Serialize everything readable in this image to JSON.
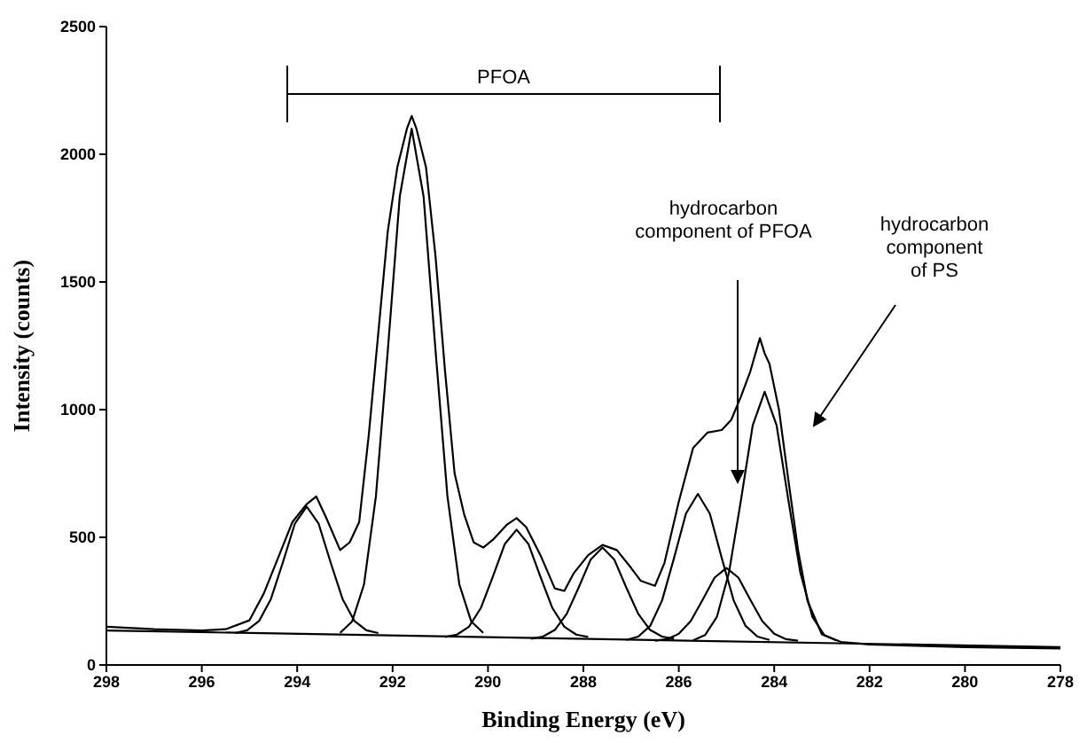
{
  "chart_data": {
    "type": "line",
    "xlabel": "Binding Energy (eV)",
    "ylabel": "Intensity (counts)",
    "xlim": [
      298,
      278
    ],
    "xticks": [
      298,
      296,
      294,
      292,
      290,
      288,
      286,
      284,
      282,
      280,
      278
    ],
    "ylim": [
      0,
      2500
    ],
    "yticks": [
      0,
      500,
      1000,
      1500,
      2000,
      2500
    ],
    "marker": "none",
    "line_style": "solid",
    "annotations": [
      "PFOA",
      "hydrocarbon\ncomponent of PFOA",
      "hydrocarbon\ncomponent\nof PS"
    ],
    "series": [
      {
        "color": "#000000",
        "x": [
          298,
          297,
          296,
          295.5,
          295,
          294.7,
          294.4,
          294.1,
          293.8,
          293.6,
          293.4,
          293.1,
          292.9,
          292.7,
          292.5,
          292.3,
          292.1,
          291.9,
          291.7,
          291.6,
          291.5,
          291.3,
          291.1,
          290.9,
          290.7,
          290.5,
          290.3,
          290.1,
          289.9,
          289.6,
          289.4,
          289.2,
          288.9,
          288.6,
          288.4,
          288.2,
          287.9,
          287.6,
          287.3,
          287,
          286.8,
          286.5,
          286.3,
          286,
          285.7,
          285.4,
          285.1,
          284.9,
          284.7,
          284.5,
          284.3,
          284.2,
          284.1,
          283.9,
          283.7,
          283.5,
          283.3,
          283,
          282.6,
          282,
          280,
          278
        ],
        "values": [
          150,
          140,
          135,
          140,
          175,
          280,
          420,
          560,
          630,
          660,
          580,
          450,
          480,
          560,
          900,
          1300,
          1700,
          1950,
          2100,
          2150,
          2100,
          1950,
          1600,
          1150,
          750,
          590,
          480,
          460,
          490,
          550,
          575,
          540,
          430,
          300,
          290,
          360,
          430,
          470,
          450,
          380,
          330,
          310,
          400,
          640,
          850,
          910,
          920,
          960,
          1050,
          1150,
          1280,
          1220,
          1180,
          1000,
          720,
          450,
          250,
          120,
          90,
          80,
          70,
          65
        ]
      },
      {
        "color": "#000000",
        "x": [
          298,
          278
        ],
        "values": [
          135,
          70
        ]
      },
      {
        "color": "#000000",
        "x": [
          295.3,
          295.05,
          294.8,
          294.55,
          294.3,
          294.05,
          293.8,
          293.55,
          293.3,
          293.05,
          292.8,
          292.55,
          292.3
        ],
        "values": [
          125,
          136,
          172,
          259,
          402,
          553,
          620,
          553,
          402,
          259,
          172,
          136,
          125
        ]
      },
      {
        "color": "#000000",
        "x": [
          293.1,
          292.85,
          292.6,
          292.35,
          292.1,
          291.85,
          291.6,
          291.35,
          291.1,
          290.85,
          290.6,
          290.35,
          290.1
        ],
        "values": [
          126,
          170,
          315,
          660,
          1232,
          1834,
          2100,
          1834,
          1232,
          660,
          315,
          170,
          126
        ]
      },
      {
        "color": "#000000",
        "x": [
          290.9,
          290.65,
          290.4,
          290.15,
          289.9,
          289.65,
          289.4,
          289.15,
          288.9,
          288.65,
          288.4,
          288.15,
          287.9
        ],
        "values": [
          110,
          119,
          150,
          223,
          345,
          473,
          530,
          473,
          345,
          223,
          150,
          119,
          110
        ]
      },
      {
        "color": "#000000",
        "x": [
          289.1,
          288.85,
          288.6,
          288.35,
          288.1,
          287.85,
          287.6,
          287.35,
          287.1,
          286.85,
          286.6,
          286.35,
          286.1
        ],
        "values": [
          103,
          111,
          137,
          200,
          303,
          412,
          460,
          412,
          303,
          200,
          137,
          111,
          103
        ]
      },
      {
        "color": "#000000",
        "x": [
          287.1,
          286.85,
          286.6,
          286.35,
          286.1,
          285.85,
          285.6,
          285.35,
          285.1,
          284.85,
          284.6,
          284.35,
          284.1
        ],
        "values": [
          98,
          111,
          153,
          253,
          419,
          593,
          670,
          593,
          419,
          253,
          153,
          111,
          98
        ]
      },
      {
        "color": "#000000",
        "x": [
          286.5,
          286.25,
          286,
          285.75,
          285.5,
          285.25,
          285,
          284.75,
          284.5,
          284.25,
          284,
          283.75,
          283.5
        ],
        "values": [
          95,
          101,
          122,
          172,
          255,
          342,
          380,
          342,
          255,
          172,
          122,
          101,
          95
        ]
      },
      {
        "color": "#000000",
        "x": [
          285.7,
          285.45,
          285.2,
          284.95,
          284.7,
          284.45,
          284.2,
          283.95,
          283.7,
          283.45,
          283.2,
          282.95,
          282.7
        ],
        "values": [
          96,
          117,
          189,
          360,
          642,
          939,
          1070,
          939,
          642,
          360,
          189,
          117,
          96
        ]
      }
    ]
  }
}
